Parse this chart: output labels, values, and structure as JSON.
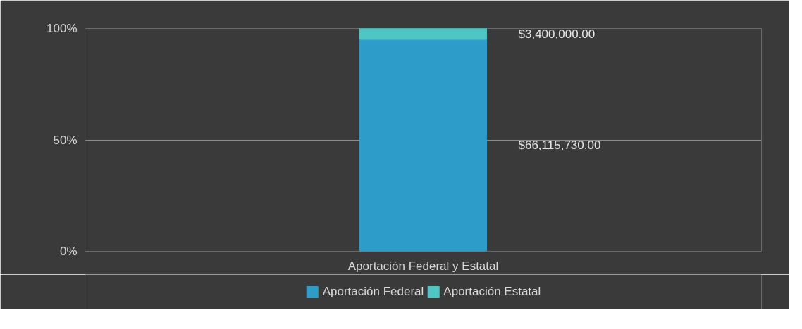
{
  "chart_data": {
    "type": "bar",
    "stacked": true,
    "categories": [
      "Aportación Federal y Estatal"
    ],
    "series": [
      {
        "name": "Aportación Federal",
        "color": "#2e9cc8",
        "values": [
          95.1
        ]
      },
      {
        "name": "Aportación Estatal",
        "color": "#4fc6c6",
        "values": [
          4.9
        ]
      }
    ],
    "annotations": [
      "$66,115,730.00",
      "$3,400,000.00"
    ],
    "ylim": [
      0,
      100
    ],
    "yticks": [
      {
        "value": 0,
        "label": "0%"
      },
      {
        "value": 50,
        "label": "50%"
      },
      {
        "value": 100,
        "label": "100%"
      }
    ],
    "grid": "y",
    "legend": "bottom"
  }
}
